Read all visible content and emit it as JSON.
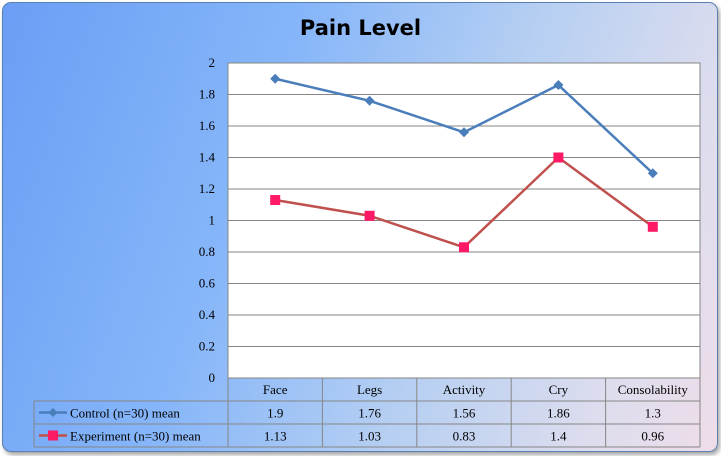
{
  "chart_data": {
    "type": "line",
    "title": "Pain Level",
    "categories": [
      "Face",
      "Legs",
      "Activity",
      "Cry",
      "Consolability"
    ],
    "ylim": [
      0,
      2
    ],
    "yticks": [
      "0",
      "0.2",
      "0.4",
      "0.6",
      "0.8",
      "1",
      "1.2",
      "1.4",
      "1.6",
      "1.8",
      "2"
    ],
    "grid": true,
    "legend_placement": "data-table",
    "series": [
      {
        "name": "Control (n=30) mean",
        "values": [
          1.9,
          1.76,
          1.56,
          1.86,
          1.3
        ],
        "labels": [
          "1.9",
          "1.76",
          "1.56",
          "1.86",
          "1.3"
        ],
        "color": "#4a7ebb",
        "marker": "diamond"
      },
      {
        "name": "Experiment (n=30) mean",
        "values": [
          1.13,
          1.03,
          0.83,
          1.4,
          0.96
        ],
        "labels": [
          "1.13",
          "1.03",
          "0.83",
          "1.4",
          "0.96"
        ],
        "color": "#c0504d",
        "marker_color": "#ff1a66",
        "marker": "square"
      }
    ]
  }
}
